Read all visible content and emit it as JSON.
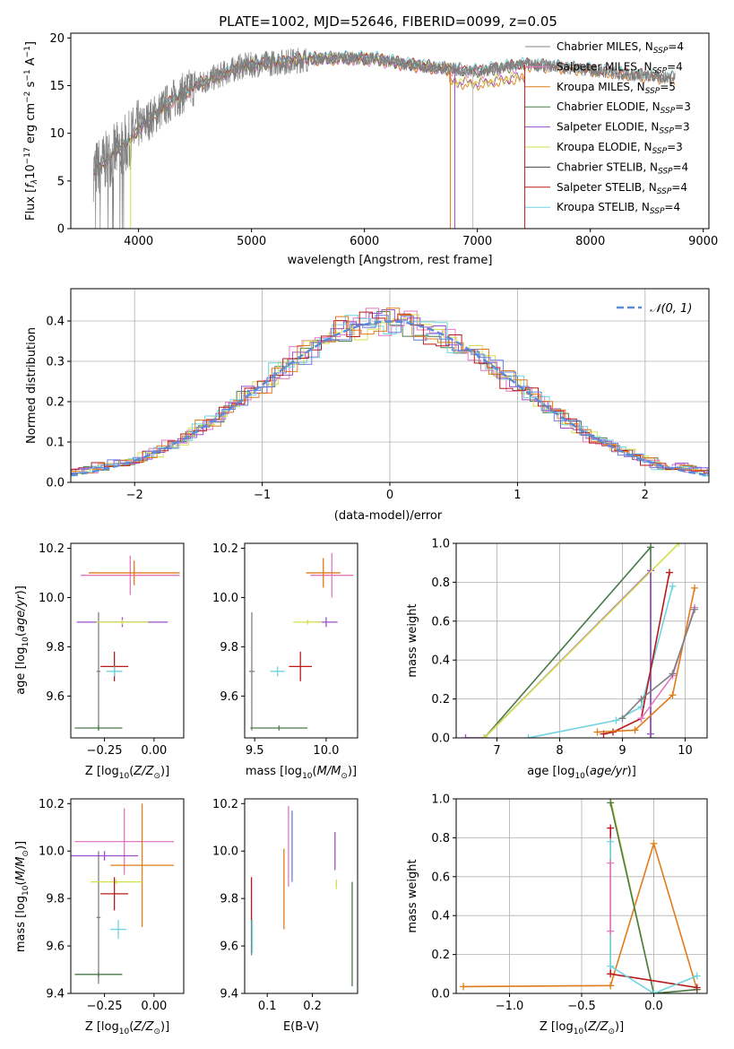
{
  "colors": {
    "chabrier_miles": "#808080",
    "salpeter_miles": "#e377c2",
    "kroupa_miles": "#e07b1a",
    "chabrier_elodie": "#4a7a4a",
    "salpeter_elodie": "#9b4fc8",
    "kroupa_elodie": "#d4e04a",
    "chabrier_stelib": "#444444",
    "salpeter_stelib": "#b81a1a",
    "kroupa_stelib": "#6fd3e0",
    "normal": "#5b8ad6",
    "blue": "#6a7de0"
  },
  "chart_data": [
    {
      "id": "spectrum",
      "type": "line",
      "title": "PLATE=1002, MJD=52646, FIBERID=0099, z=0.05",
      "xlabel": "wavelength [Angstrom, rest frame]",
      "ylabel": "Flux [f_λ10^-17 erg cm^-2 s^-1 A^-1]",
      "xlim": [
        3400,
        9050
      ],
      "ylim": [
        0,
        20.5
      ],
      "xticks": [
        "4000",
        "5000",
        "6000",
        "7000",
        "8000",
        "9000"
      ],
      "yticks": [
        "0",
        "5",
        "10",
        "15",
        "20"
      ],
      "legend_position": "upper right",
      "legend": [
        "Chabrier MILES, N_SSP=4",
        "Salpeter MILES, N_SSP=4",
        "Kroupa MILES, N_SSP=5",
        "Chabrier ELODIE, N_SSP=3",
        "Salpeter ELODIE, N_SSP=3",
        "Kroupa ELODIE, N_SSP=3",
        "Chabrier STELIB, N_SSP=4",
        "Salpeter STELIB, N_SSP=4",
        "Kroupa STELIB, N_SSP=4"
      ],
      "continuum": {
        "x": [
          3600,
          3700,
          3800,
          3900,
          4000,
          4100,
          4200,
          4300,
          4500,
          4700,
          4900,
          5100,
          5300,
          5500,
          5800,
          6100,
          6400,
          6700,
          7000,
          7400,
          7700,
          8000,
          8300,
          8700
        ],
        "y": [
          6.0,
          7.0,
          8.0,
          9.0,
          10.5,
          11.5,
          12.5,
          13.5,
          15.0,
          16.0,
          17.0,
          17.3,
          17.5,
          17.8,
          17.9,
          17.8,
          17.2,
          16.8,
          16.5,
          17.2,
          17.0,
          16.6,
          16.2,
          15.8
        ]
      }
    },
    {
      "id": "residuals",
      "type": "line",
      "xlabel": "(data-model)/error",
      "ylabel": "Normed distribution",
      "xlim": [
        -2.5,
        2.5
      ],
      "ylim": [
        0,
        0.48
      ],
      "xticks": [
        "−2",
        "−1",
        "0",
        "1",
        "2"
      ],
      "yticks": [
        "0.0",
        "0.1",
        "0.2",
        "0.3",
        "0.4"
      ],
      "legend": [
        "𝒩(0, 1)"
      ],
      "normal_curve": {
        "mean": 0,
        "sigma": 1
      }
    },
    {
      "id": "age_vs_Z",
      "type": "scatter",
      "xlabel": "Z [log10(Z/Z☉)]",
      "ylabel": "age  [log10(age/yr)]",
      "xlim": [
        -0.42,
        0.15
      ],
      "ylim": [
        9.43,
        10.22
      ],
      "xticks": [
        "−0.25",
        "0.00"
      ],
      "yticks": [
        "9.6",
        "9.8",
        "10.0",
        "10.2"
      ],
      "errorbars": [
        {
          "series": "Chabrier MILES",
          "x": -0.28,
          "xerr": 0.01,
          "y": 9.7,
          "yerr": 0.24
        },
        {
          "series": "Salpeter MILES",
          "x": -0.12,
          "xerr": 0.25,
          "y": 10.09,
          "yerr": 0.08
        },
        {
          "series": "Kroupa MILES",
          "x": -0.1,
          "xerr": 0.23,
          "y": 10.1,
          "yerr": 0.05
        },
        {
          "series": "Chabrier ELODIE",
          "x": -0.28,
          "xerr": 0.12,
          "y": 9.47,
          "yerr": 0.01
        },
        {
          "series": "Salpeter ELODIE",
          "x": -0.16,
          "xerr": 0.23,
          "y": 9.9,
          "yerr": 0.02
        },
        {
          "series": "Kroupa ELODIE",
          "x": -0.16,
          "xerr": 0.13,
          "y": 9.9,
          "yerr": 0.01
        },
        {
          "series": "Salpeter STELIB",
          "x": -0.2,
          "xerr": 0.07,
          "y": 9.72,
          "yerr": 0.06
        },
        {
          "series": "Kroupa STELIB",
          "x": -0.2,
          "xerr": 0.04,
          "y": 9.7,
          "yerr": 0.02
        }
      ]
    },
    {
      "id": "age_vs_mass",
      "type": "scatter",
      "xlabel": "mass [log10(M/M☉)]",
      "xlim": [
        9.43,
        10.22
      ],
      "ylim": [
        9.43,
        10.22
      ],
      "xticks": [
        "9.5",
        "10.0"
      ],
      "yticks": [
        "9.6",
        "9.8",
        "10.0",
        "10.2"
      ],
      "errorbars": [
        {
          "series": "Chabrier MILES",
          "x": 9.48,
          "xerr": 0.02,
          "y": 9.7,
          "yerr": 0.24
        },
        {
          "series": "Salpeter MILES",
          "x": 10.04,
          "xerr": 0.15,
          "y": 10.09,
          "yerr": 0.09
        },
        {
          "series": "Kroupa MILES",
          "x": 9.98,
          "xerr": 0.12,
          "y": 10.1,
          "yerr": 0.06
        },
        {
          "series": "Chabrier ELODIE",
          "x": 9.67,
          "xerr": 0.2,
          "y": 9.47,
          "yerr": 0.01
        },
        {
          "series": "Salpeter ELODIE",
          "x": 10.0,
          "xerr": 0.08,
          "y": 9.9,
          "yerr": 0.02
        },
        {
          "series": "Kroupa ELODIE",
          "x": 9.87,
          "xerr": 0.1,
          "y": 9.9,
          "yerr": 0.01
        },
        {
          "series": "Salpeter STELIB",
          "x": 9.82,
          "xerr": 0.08,
          "y": 9.72,
          "yerr": 0.06
        },
        {
          "series": "Kroupa STELIB",
          "x": 9.66,
          "xerr": 0.05,
          "y": 9.7,
          "yerr": 0.02
        }
      ]
    },
    {
      "id": "weight_vs_age",
      "type": "line",
      "xlabel": "age  [log10(age/yr)]",
      "ylabel": "mass weight",
      "xlim": [
        6.35,
        10.35
      ],
      "ylim": [
        0,
        1
      ],
      "xticks": [
        "7",
        "8",
        "9",
        "10"
      ],
      "yticks": [
        "0.0",
        "0.2",
        "0.4",
        "0.6",
        "0.8",
        "1.0"
      ],
      "series": [
        {
          "name": "Chabrier ELODIE",
          "x": [
            6.8,
            9.45,
            9.45
          ],
          "y": [
            0.0,
            0.98,
            0.0
          ]
        },
        {
          "name": "Salpeter ELODIE",
          "x": [
            6.5,
            6.8,
            9.45,
            9.45
          ],
          "y": [
            0.0,
            0.0,
            0.86,
            0.02
          ]
        },
        {
          "name": "Kroupa ELODIE",
          "x": [
            6.8,
            9.9
          ],
          "y": [
            0.0,
            1.0
          ]
        },
        {
          "name": "Kroupa STELIB",
          "x": [
            7.5,
            8.9,
            9.3,
            9.8
          ],
          "y": [
            0.0,
            0.09,
            0.16,
            0.78
          ]
        },
        {
          "name": "Salpeter STELIB",
          "x": [
            8.7,
            8.85,
            9.3,
            9.75
          ],
          "y": [
            0.02,
            0.03,
            0.1,
            0.85
          ]
        },
        {
          "name": "Kroupa MILES",
          "x": [
            8.6,
            9.2,
            9.8,
            10.15
          ],
          "y": [
            0.03,
            0.04,
            0.22,
            0.77
          ]
        },
        {
          "name": "Salpeter MILES",
          "x": [
            9.3,
            9.8,
            10.15
          ],
          "y": [
            0.1,
            0.32,
            0.67
          ]
        },
        {
          "name": "Chabrier MILES",
          "x": [
            9.0,
            9.3,
            9.8,
            10.15
          ],
          "y": [
            0.1,
            0.2,
            0.33,
            0.66
          ]
        }
      ]
    },
    {
      "id": "mass_vs_Z",
      "type": "scatter",
      "xlabel": "Z [log10(Z/Z☉)]",
      "ylabel": "mass [log10(M/M☉)]",
      "xlim": [
        -0.42,
        0.15
      ],
      "ylim": [
        9.4,
        10.22
      ],
      "xticks": [
        "−0.25",
        "0.00"
      ],
      "yticks": [
        "9.4",
        "9.6",
        "9.8",
        "10.0",
        "10.2"
      ],
      "errorbars": [
        {
          "series": "Chabrier MILES",
          "x": -0.28,
          "xerr": 0.01,
          "y": 9.72,
          "yerr": 0.28
        },
        {
          "series": "Salpeter MILES",
          "x": -0.15,
          "xerr": 0.25,
          "y": 10.04,
          "yerr": 0.14
        },
        {
          "series": "Kroupa MILES",
          "x": -0.06,
          "xerr": 0.16,
          "y": 9.94,
          "yerr": 0.26
        },
        {
          "series": "Chabrier ELODIE",
          "x": -0.28,
          "xerr": 0.12,
          "y": 9.48,
          "yerr": 0.01
        },
        {
          "series": "Salpeter ELODIE",
          "x": -0.25,
          "xerr": 0.17,
          "y": 9.98,
          "yerr": 0.02
        },
        {
          "series": "Kroupa ELODIE",
          "x": -0.19,
          "xerr": 0.13,
          "y": 9.87,
          "yerr": 0.01
        },
        {
          "series": "Salpeter STELIB",
          "x": -0.2,
          "xerr": 0.07,
          "y": 9.82,
          "yerr": 0.07
        },
        {
          "series": "Kroupa STELIB",
          "x": -0.18,
          "xerr": 0.04,
          "y": 9.67,
          "yerr": 0.04
        }
      ]
    },
    {
      "id": "mass_vs_ebv",
      "type": "scatter",
      "xlabel": "E(B-V)",
      "xlim": [
        0.05,
        0.3
      ],
      "ylim": [
        9.4,
        10.22
      ],
      "xticks": [
        "0.1",
        "0.2"
      ],
      "yticks": [
        "9.4",
        "9.6",
        "9.8",
        "10.0",
        "10.2"
      ],
      "errorbars": [
        {
          "series": "Chabrier MILES",
          "x": 0.065,
          "xerr": 0,
          "y": 9.64,
          "yerr": 0.08
        },
        {
          "series": "Salpeter MILES",
          "x": 0.147,
          "xerr": 0,
          "y": 10.02,
          "yerr": 0.17
        },
        {
          "series": "Kroupa MILES",
          "x": 0.137,
          "xerr": 0,
          "y": 9.84,
          "yerr": 0.17
        },
        {
          "series": "Chabrier ELODIE",
          "x": 0.288,
          "xerr": 0,
          "y": 9.65,
          "yerr": 0.22
        },
        {
          "series": "Salpeter ELODIE",
          "x": 0.25,
          "xerr": 0,
          "y": 10.0,
          "yerr": 0.08
        },
        {
          "series": "Kroupa ELODIE",
          "x": 0.253,
          "xerr": 0,
          "y": 9.86,
          "yerr": 0.02
        },
        {
          "series": "Salpeter STELIB",
          "x": 0.065,
          "xerr": 0,
          "y": 9.8,
          "yerr": 0.09
        },
        {
          "series": "Kroupa STELIB",
          "x": 0.067,
          "xerr": 0,
          "y": 9.64,
          "yerr": 0.07
        },
        {
          "series": "blue",
          "x": 0.155,
          "xerr": 0,
          "y": 10.02,
          "yerr": 0.15
        }
      ]
    },
    {
      "id": "weight_vs_Z",
      "type": "line",
      "xlabel": "Z [log10(Z/Z☉)]",
      "ylabel": "mass weight",
      "xlim": [
        -1.37,
        0.37
      ],
      "ylim": [
        0,
        1
      ],
      "xticks": [
        "−1.0",
        "−0.5",
        "0.0"
      ],
      "yticks": [
        "0.0",
        "0.2",
        "0.4",
        "0.6",
        "0.8",
        "1.0"
      ],
      "series": [
        {
          "name": "Kroupa MILES",
          "x": [
            -1.32,
            -0.3,
            0.0,
            0.3
          ],
          "y": [
            0.035,
            0.04,
            0.77,
            0.02
          ]
        },
        {
          "name": "Kroupa ELODIE",
          "x": [
            -0.3,
            0.0,
            0.3
          ],
          "y": [
            1.0,
            0.0,
            0.02
          ]
        },
        {
          "name": "Chabrier ELODIE",
          "x": [
            -0.3,
            0.0,
            0.3
          ],
          "y": [
            0.98,
            0.0,
            0.02
          ]
        },
        {
          "name": "Salpeter STELIB",
          "x": [
            -0.3,
            -0.3,
            0.3
          ],
          "y": [
            0.85,
            0.1,
            0.03
          ]
        },
        {
          "name": "Kroupa STELIB",
          "x": [
            -0.3,
            -0.3,
            0.0,
            0.3
          ],
          "y": [
            0.78,
            0.14,
            0.0,
            0.09
          ]
        },
        {
          "name": "Salpeter MILES",
          "x": [
            -0.3,
            -0.3
          ],
          "y": [
            0.67,
            0.32
          ]
        }
      ]
    }
  ]
}
